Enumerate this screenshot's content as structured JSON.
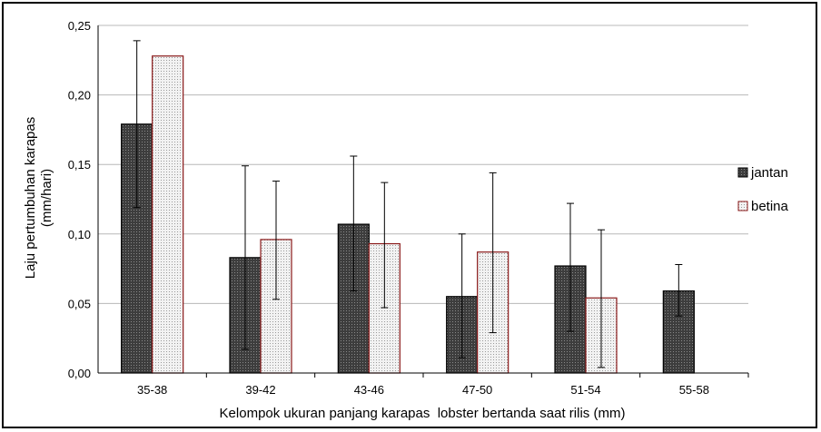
{
  "chart_data": {
    "type": "bar",
    "title": "",
    "xlabel": "Kelompok ukuran panjang karapas  lobster bertanda saat rilis (mm)",
    "ylabel_line1": "Laju pertumbuhan karapas",
    "ylabel_line2": "(mm/hari)",
    "categories": [
      "35-38",
      "39-42",
      "43-46",
      "47-50",
      "51-54",
      "55-58"
    ],
    "ylim": [
      0,
      0.25
    ],
    "yticks": [
      "0,00",
      "0,05",
      "0,10",
      "0,15",
      "0,20",
      "0,25"
    ],
    "ytick_values": [
      0,
      0.05,
      0.1,
      0.15,
      0.2,
      0.25
    ],
    "grid": true,
    "legend_position": "right",
    "series": [
      {
        "name": "jantan",
        "color": "#3a3a3a",
        "values": [
          0.179,
          0.083,
          0.107,
          0.055,
          0.077,
          0.059
        ],
        "err_low": [
          0.119,
          0.017,
          0.059,
          0.011,
          0.03,
          0.041
        ],
        "err_high": [
          0.239,
          0.149,
          0.156,
          0.1,
          0.122,
          0.078
        ]
      },
      {
        "name": "betina",
        "color": "#e6e6e6",
        "edge": "#8b1a1a",
        "values": [
          0.228,
          0.096,
          0.093,
          0.087,
          0.054,
          null
        ],
        "err_low": [
          null,
          0.053,
          0.047,
          0.029,
          0.004,
          null
        ],
        "err_high": [
          null,
          0.138,
          0.137,
          0.144,
          0.103,
          null
        ]
      }
    ]
  }
}
